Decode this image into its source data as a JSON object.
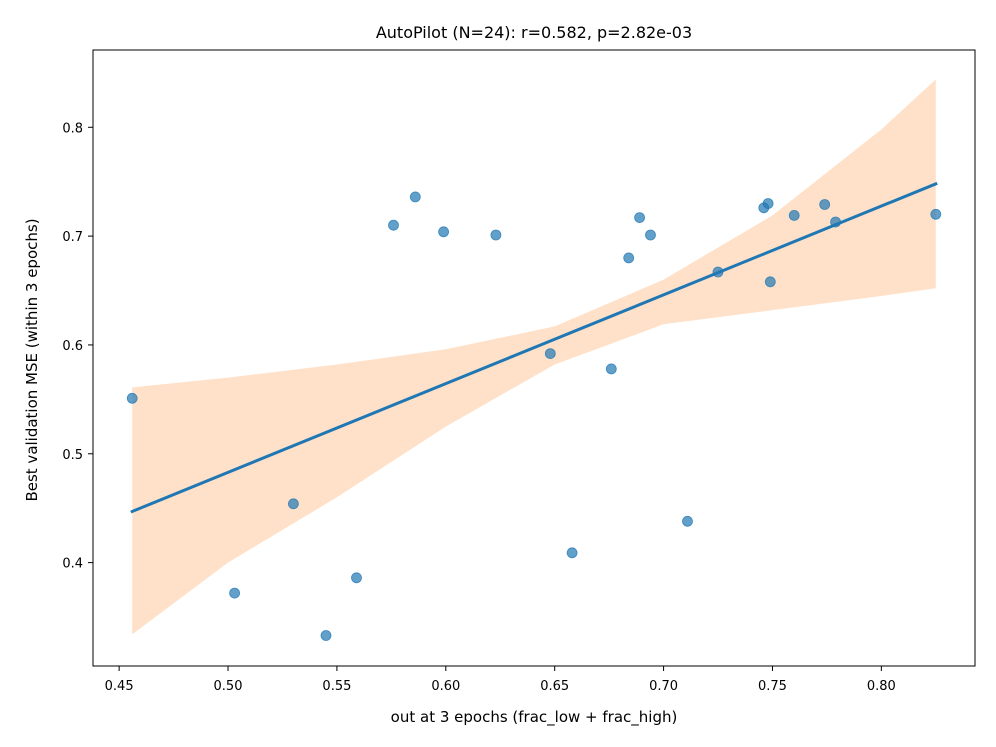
{
  "chart_data": {
    "type": "scatter",
    "title": "AutoPilot (N=24): r=0.582, p=2.82e-03",
    "xlabel": "out at 3 epochs (frac_low + frac_high)",
    "ylabel": "Best validation MSE (within 3 epochs)",
    "xlim": [
      0.438,
      0.843
    ],
    "ylim": [
      0.305,
      0.871
    ],
    "xticks": [
      0.45,
      0.5,
      0.55,
      0.6,
      0.65,
      0.7,
      0.75,
      0.8
    ],
    "xtick_labels": [
      "0.45",
      "0.50",
      "0.55",
      "0.60",
      "0.65",
      "0.70",
      "0.75",
      "0.80"
    ],
    "yticks": [
      0.4,
      0.5,
      0.6,
      0.7,
      0.8
    ],
    "ytick_labels": [
      "0.4",
      "0.5",
      "0.6",
      "0.7",
      "0.8"
    ],
    "grid": false,
    "colors": {
      "points": "#1f77b4",
      "line": "#1f77b4",
      "band": "#ffdcbf"
    },
    "points": [
      {
        "x": 0.456,
        "y": 0.551
      },
      {
        "x": 0.503,
        "y": 0.372
      },
      {
        "x": 0.53,
        "y": 0.454
      },
      {
        "x": 0.545,
        "y": 0.333
      },
      {
        "x": 0.559,
        "y": 0.386
      },
      {
        "x": 0.576,
        "y": 0.71
      },
      {
        "x": 0.586,
        "y": 0.736
      },
      {
        "x": 0.599,
        "y": 0.704
      },
      {
        "x": 0.623,
        "y": 0.701
      },
      {
        "x": 0.648,
        "y": 0.592
      },
      {
        "x": 0.658,
        "y": 0.409
      },
      {
        "x": 0.676,
        "y": 0.578
      },
      {
        "x": 0.684,
        "y": 0.68
      },
      {
        "x": 0.689,
        "y": 0.717
      },
      {
        "x": 0.694,
        "y": 0.701
      },
      {
        "x": 0.711,
        "y": 0.438
      },
      {
        "x": 0.725,
        "y": 0.667
      },
      {
        "x": 0.746,
        "y": 0.726
      },
      {
        "x": 0.748,
        "y": 0.73
      },
      {
        "x": 0.749,
        "y": 0.658
      },
      {
        "x": 0.76,
        "y": 0.719
      },
      {
        "x": 0.774,
        "y": 0.729
      },
      {
        "x": 0.779,
        "y": 0.713
      },
      {
        "x": 0.825,
        "y": 0.72
      }
    ],
    "regression": {
      "x": [
        0.456,
        0.825
      ],
      "y": [
        0.447,
        0.748
      ]
    },
    "confidence_band": {
      "x": [
        0.456,
        0.5,
        0.55,
        0.6,
        0.65,
        0.7,
        0.75,
        0.8,
        0.825
      ],
      "upper": [
        0.561,
        0.57,
        0.582,
        0.596,
        0.617,
        0.66,
        0.719,
        0.798,
        0.844
      ],
      "lower": [
        0.334,
        0.4,
        0.46,
        0.525,
        0.582,
        0.619,
        0.632,
        0.645,
        0.652
      ]
    }
  }
}
